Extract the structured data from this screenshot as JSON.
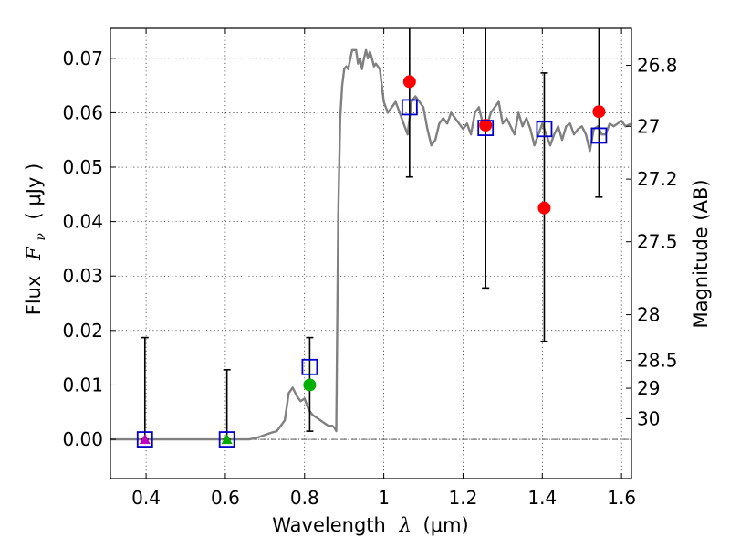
{
  "chart_data": {
    "type": "scatter",
    "xlabel_text": "Wavelength",
    "xlabel_symbol": "λ",
    "xlabel_unit": "(μm)",
    "ylabel_text": "Flux",
    "ylabel_symbol": "F",
    "ylabel_subscript": "ν",
    "ylabel_unit": "( μJy )",
    "y2label": "Magnitude (AB)",
    "xlim": [
      0.31,
      1.625
    ],
    "ylim": [
      -0.0072,
      0.0755
    ],
    "grid": true,
    "x_ticks": [
      {
        "value": 0.4,
        "label": "0.4"
      },
      {
        "value": 0.6,
        "label": "0.6"
      },
      {
        "value": 0.8,
        "label": "0.8"
      },
      {
        "value": 1.0,
        "label": "1"
      },
      {
        "value": 1.2,
        "label": "1.2"
      },
      {
        "value": 1.4,
        "label": "1.4"
      },
      {
        "value": 1.6,
        "label": "1.6"
      }
    ],
    "y_ticks": [
      {
        "value": 0.0,
        "label": "0.00"
      },
      {
        "value": 0.01,
        "label": "0.01"
      },
      {
        "value": 0.02,
        "label": "0.02"
      },
      {
        "value": 0.03,
        "label": "0.03"
      },
      {
        "value": 0.04,
        "label": "0.04"
      },
      {
        "value": 0.05,
        "label": "0.05"
      },
      {
        "value": 0.06,
        "label": "0.06"
      },
      {
        "value": 0.07,
        "label": "0.07"
      }
    ],
    "mag_ticks": [
      {
        "label": "26.8",
        "flux": 0.0687
      },
      {
        "label": "27",
        "flux": 0.0575
      },
      {
        "label": "27.2",
        "flux": 0.0478
      },
      {
        "label": "27.5",
        "flux": 0.0363
      },
      {
        "label": "28",
        "flux": 0.0229
      },
      {
        "label": "28.5",
        "flux": 0.0145
      },
      {
        "label": "29",
        "flux": 0.0094
      },
      {
        "label": "30",
        "flux": 0.0038
      }
    ],
    "sed_color": "#808080",
    "sed_x": [
      0.31,
      0.66,
      0.68,
      0.7,
      0.715,
      0.73,
      0.74,
      0.75,
      0.76,
      0.77,
      0.78,
      0.79,
      0.8,
      0.81,
      0.82,
      0.83,
      0.84,
      0.85,
      0.86,
      0.87,
      0.875,
      0.88,
      0.885,
      0.89,
      0.895,
      0.9,
      0.905,
      0.91,
      0.92,
      0.93,
      0.935,
      0.94,
      0.945,
      0.95,
      0.955,
      0.96,
      0.965,
      0.97,
      0.975,
      0.98,
      0.99,
      1.0,
      1.01,
      1.02,
      1.03,
      1.04,
      1.05,
      1.06,
      1.07,
      1.08,
      1.09,
      1.1,
      1.11,
      1.12,
      1.13,
      1.14,
      1.15,
      1.16,
      1.17,
      1.18,
      1.19,
      1.2,
      1.21,
      1.22,
      1.23,
      1.24,
      1.25,
      1.26,
      1.27,
      1.28,
      1.29,
      1.3,
      1.31,
      1.32,
      1.33,
      1.34,
      1.35,
      1.36,
      1.37,
      1.38,
      1.39,
      1.4,
      1.41,
      1.42,
      1.43,
      1.44,
      1.45,
      1.46,
      1.47,
      1.48,
      1.49,
      1.5,
      1.51,
      1.52,
      1.53,
      1.54,
      1.55,
      1.56,
      1.57,
      1.58,
      1.59,
      1.6,
      1.61,
      1.625
    ],
    "sed_y": [
      0.0,
      0.0,
      0.0003,
      0.0008,
      0.0012,
      0.0015,
      0.0025,
      0.0035,
      0.0085,
      0.0095,
      0.008,
      0.007,
      0.0075,
      0.0055,
      0.0045,
      0.004,
      0.0035,
      0.003,
      0.0025,
      0.0025,
      0.0022,
      0.0015,
      0.0415,
      0.059,
      0.065,
      0.068,
      0.0685,
      0.068,
      0.0715,
      0.0715,
      0.069,
      0.07,
      0.068,
      0.07,
      0.0715,
      0.07,
      0.0712,
      0.07,
      0.0685,
      0.069,
      0.068,
      0.062,
      0.06,
      0.061,
      0.062,
      0.06,
      0.058,
      0.056,
      0.062,
      0.063,
      0.062,
      0.061,
      0.057,
      0.054,
      0.055,
      0.058,
      0.059,
      0.058,
      0.06,
      0.059,
      0.058,
      0.057,
      0.058,
      0.056,
      0.06,
      0.061,
      0.058,
      0.0575,
      0.06,
      0.061,
      0.062,
      0.058,
      0.059,
      0.0575,
      0.056,
      0.06,
      0.0575,
      0.059,
      0.057,
      0.054,
      0.056,
      0.058,
      0.056,
      0.054,
      0.056,
      0.0575,
      0.055,
      0.0575,
      0.058,
      0.056,
      0.057,
      0.0575,
      0.056,
      0.053,
      0.057,
      0.0575,
      0.056,
      0.056,
      0.058,
      0.0575,
      0.058,
      0.0585,
      0.0575,
      0.058
    ],
    "errorbars": [
      {
        "x": 0.397,
        "low": 0.0,
        "high": 0.0187
      },
      {
        "x": 0.604,
        "low": 0.0,
        "high": 0.0128
      },
      {
        "x": 0.813,
        "low": 0.0015,
        "high": 0.0187
      },
      {
        "x": 1.065,
        "low": 0.0482,
        "high": 0.0755
      },
      {
        "x": 1.257,
        "low": 0.0278,
        "high": 0.0755
      },
      {
        "x": 1.405,
        "low": 0.018,
        "high": 0.0673
      },
      {
        "x": 1.543,
        "low": 0.0445,
        "high": 0.0755
      }
    ],
    "observed": [
      {
        "x": 0.397,
        "y": 0.0,
        "marker": "triangle",
        "color": "#bf00bf"
      },
      {
        "x": 0.604,
        "y": 0.0,
        "marker": "triangle",
        "color": "#00aa00"
      },
      {
        "x": 0.813,
        "y": 0.01,
        "marker": "circle",
        "color": "#00b000"
      },
      {
        "x": 1.065,
        "y": 0.0657,
        "marker": "circle",
        "color": "#ff0000"
      },
      {
        "x": 1.257,
        "y": 0.0577,
        "marker": "circle",
        "color": "#ff0000"
      },
      {
        "x": 1.405,
        "y": 0.0425,
        "marker": "circle",
        "color": "#ff0000"
      },
      {
        "x": 1.543,
        "y": 0.0602,
        "marker": "circle",
        "color": "#ff0000"
      }
    ],
    "model": [
      {
        "x": 0.397,
        "y": 0.0
      },
      {
        "x": 0.604,
        "y": 0.0
      },
      {
        "x": 0.813,
        "y": 0.0133
      },
      {
        "x": 1.065,
        "y": 0.061
      },
      {
        "x": 1.257,
        "y": 0.0572
      },
      {
        "x": 1.405,
        "y": 0.057
      },
      {
        "x": 1.543,
        "y": 0.0558
      }
    ],
    "model_color": "#0000cc"
  }
}
